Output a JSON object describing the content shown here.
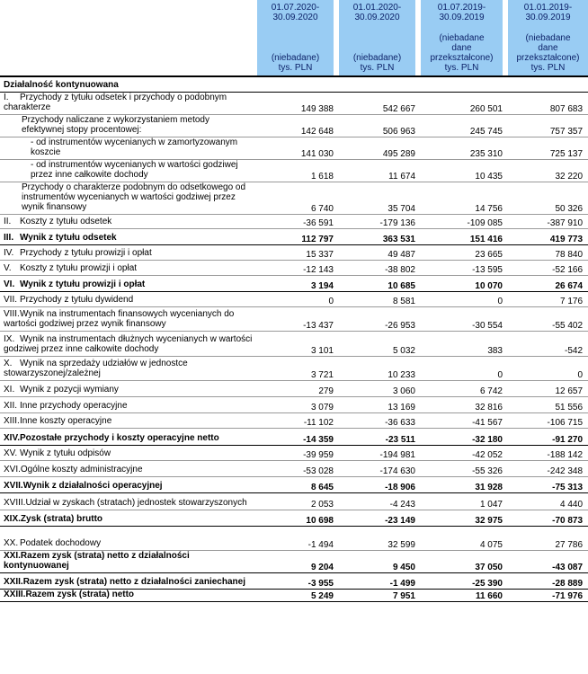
{
  "header": {
    "columns": [
      {
        "period": "01.07.2020-\n30.09.2020",
        "note": "(niebadane)\ntys. PLN"
      },
      {
        "period": "01.01.2020-\n30.09.2020",
        "note": "(niebadane)\ntys. PLN"
      },
      {
        "period": "01.07.2019-\n30.09.2019",
        "note": "(niebadane\ndane\nprzekształcone)\ntys. PLN"
      },
      {
        "period": "01.01.2019-\n30.09.2019",
        "note": "(niebadane\ndane\nprzekształcone)\ntys. PLN"
      }
    ]
  },
  "section": "Działalność kontynuowana",
  "rows": [
    {
      "num": "I.",
      "label": "Przychody z tytułu odsetek i przychody o podobnym charakterze",
      "values": [
        "149 388",
        "542 667",
        "260 501",
        "807 683"
      ]
    },
    {
      "num": "",
      "label": "Przychody naliczane z wykorzystaniem metody efektywnej stopy procentowej:",
      "values": [
        "142 648",
        "506 963",
        "245 745",
        "757 357"
      ]
    },
    {
      "num": "",
      "label": "- od instrumentów wycenianych w zamortyzowanym koszcie",
      "values": [
        "141 030",
        "495 289",
        "235 310",
        "725 137"
      ]
    },
    {
      "num": "",
      "label": "- od instrumentów wycenianych w wartości godziwej przez inne całkowite dochody",
      "values": [
        "1 618",
        "11 674",
        "10 435",
        "32 220"
      ]
    },
    {
      "num": "",
      "label": "Przychody o charakterze podobnym do odsetkowego od instrumentów wycenianych w wartości godziwej przez wynik finansowy",
      "values": [
        "6 740",
        "35 704",
        "14 756",
        "50 326"
      ]
    },
    {
      "num": "II.",
      "label": "Koszty z tytułu odsetek",
      "values": [
        "-36 591",
        "-179 136",
        "-109 085",
        "-387 910"
      ]
    },
    {
      "num": "III.",
      "label": "Wynik z tytułu odsetek",
      "values": [
        "112 797",
        "363 531",
        "151 416",
        "419 773"
      ]
    },
    {
      "num": "IV.",
      "label": "Przychody z tytułu prowizji i opłat",
      "values": [
        "15 337",
        "49 487",
        "23 665",
        "78 840"
      ]
    },
    {
      "num": "V.",
      "label": "Koszty z tytułu prowizji i opłat",
      "values": [
        "-12 143",
        "-38 802",
        "-13 595",
        "-52 166"
      ]
    },
    {
      "num": "VI.",
      "label": "Wynik z tytułu prowizji i opłat",
      "values": [
        "3 194",
        "10 685",
        "10 070",
        "26 674"
      ]
    },
    {
      "num": "VII.",
      "label": "Przychody z tytułu dywidend",
      "values": [
        "0",
        "8 581",
        "0",
        "7 176"
      ]
    },
    {
      "num": "VIII.",
      "label": "Wynik na instrumentach finansowych wycenianych do wartości godziwej przez wynik finansowy",
      "values": [
        "-13 437",
        "-26 953",
        "-30 554",
        "-55 402"
      ]
    },
    {
      "num": "IX.",
      "label": "Wynik na instrumentach dłużnych wycenianych w wartości godziwej przez inne całkowite dochody",
      "values": [
        "3 101",
        "5 032",
        "383",
        "-542"
      ]
    },
    {
      "num": "X.",
      "label": "Wynik na sprzedaży udziałów w jednostce stowarzyszonej/zależnej",
      "values": [
        "3 721",
        "10 233",
        "0",
        "0"
      ]
    },
    {
      "num": "XI.",
      "label": "Wynik z pozycji wymiany",
      "values": [
        "279",
        "3 060",
        "6 742",
        "12 657"
      ]
    },
    {
      "num": "XII.",
      "label": "Inne przychody operacyjne",
      "values": [
        "3 079",
        "13 169",
        "32 816",
        "51 556"
      ]
    },
    {
      "num": "XIII.",
      "label": "Inne koszty operacyjne",
      "values": [
        "-11 102",
        "-36 633",
        "-41 567",
        "-106 715"
      ]
    },
    {
      "num": "XIV.",
      "label": "Pozostałe przychody i koszty operacyjne netto",
      "values": [
        "-14 359",
        "-23 511",
        "-32 180",
        "-91 270"
      ]
    },
    {
      "num": "XV.",
      "label": "Wynik z tytułu odpisów",
      "values": [
        "-39 959",
        "-194 981",
        "-42 052",
        "-188 142"
      ]
    },
    {
      "num": "XVI.",
      "label": "Ogólne koszty administracyjne",
      "values": [
        "-53 028",
        "-174 630",
        "-55 326",
        "-242 348"
      ]
    },
    {
      "num": "XVII.",
      "label": "Wynik z działalności operacyjnej",
      "values": [
        "8 645",
        "-18 906",
        "31 928",
        "-75 313"
      ]
    },
    {
      "num": "XVIII.",
      "label": "Udział w zyskach (stratach) jednostek stowarzyszonych",
      "values": [
        "2 053",
        "-4 243",
        "1 047",
        "4 440"
      ]
    },
    {
      "num": "XIX.",
      "label": "Zysk (strata) brutto",
      "values": [
        "10 698",
        "-23 149",
        "32 975",
        "-70 873"
      ]
    },
    {
      "num": "XX.",
      "label": "Podatek dochodowy",
      "values": [
        "-1 494",
        "32 599",
        "4 075",
        "27 786"
      ]
    },
    {
      "num": "XXI.",
      "label": "Razem zysk (strata) netto z działalności kontynuowanej",
      "values": [
        "9 204",
        "9 450",
        "37 050",
        "-43 087"
      ]
    },
    {
      "num": "XXII.",
      "label": "Razem zysk (strata) netto z działalności zaniechanej",
      "values": [
        "-3 955",
        "-1 499",
        "-25 390",
        "-28 889"
      ]
    },
    {
      "num": "XXIII.",
      "label": "Razem zysk (strata) netto",
      "values": [
        "5 249",
        "7 951",
        "11 660",
        "-71 976"
      ]
    }
  ]
}
